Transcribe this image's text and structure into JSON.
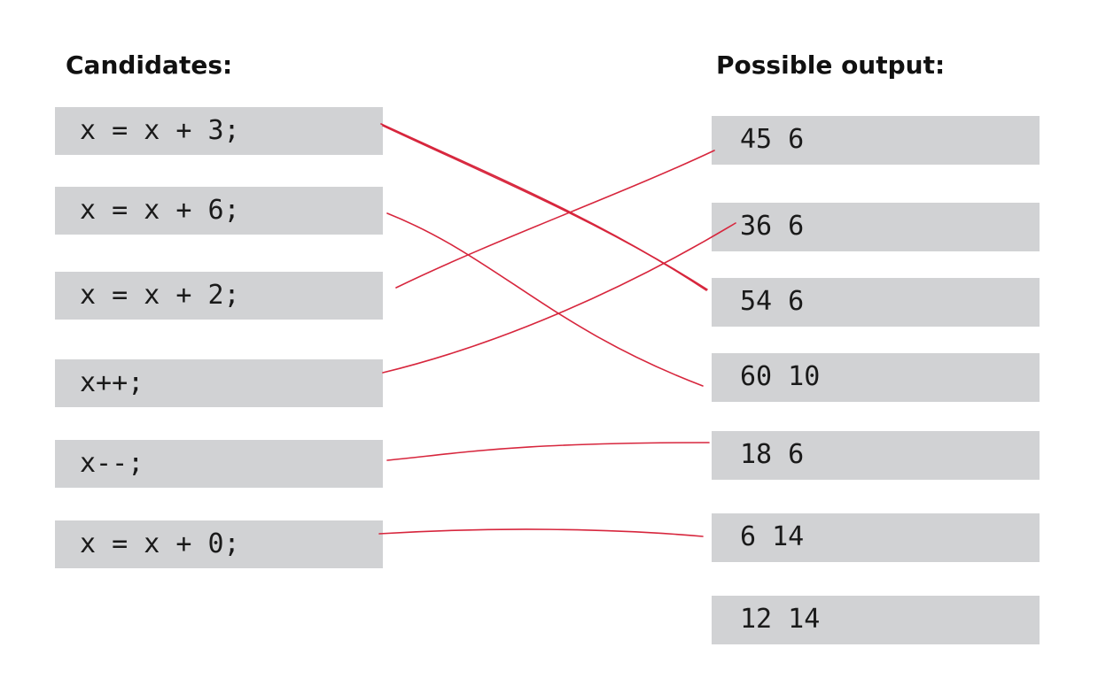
{
  "headings": {
    "candidates": "Candidates:",
    "outputs": "Possible output:"
  },
  "candidates": [
    "x = x + 3;",
    "x = x + 6;",
    "x = x + 2;",
    "x++;",
    "x--;",
    "x = x + 0;"
  ],
  "outputs": [
    "45 6",
    "36 6",
    "54 6",
    "60 10",
    "18 6",
    "6 14",
    "12 14"
  ],
  "matches": [
    {
      "candidate": "x = x + 3;",
      "output": "54 6"
    },
    {
      "candidate": "x = x + 6;",
      "output": "60 10"
    },
    {
      "candidate": "x = x + 2;",
      "output": "45 6"
    },
    {
      "candidate": "x++;",
      "output": "36 6"
    },
    {
      "candidate": "x--;",
      "output": "18 6"
    },
    {
      "candidate": "x = x + 0;",
      "output": "6 14"
    }
  ],
  "colors": {
    "box_fill": "#d1d2d4",
    "connector": "#d7263d"
  }
}
